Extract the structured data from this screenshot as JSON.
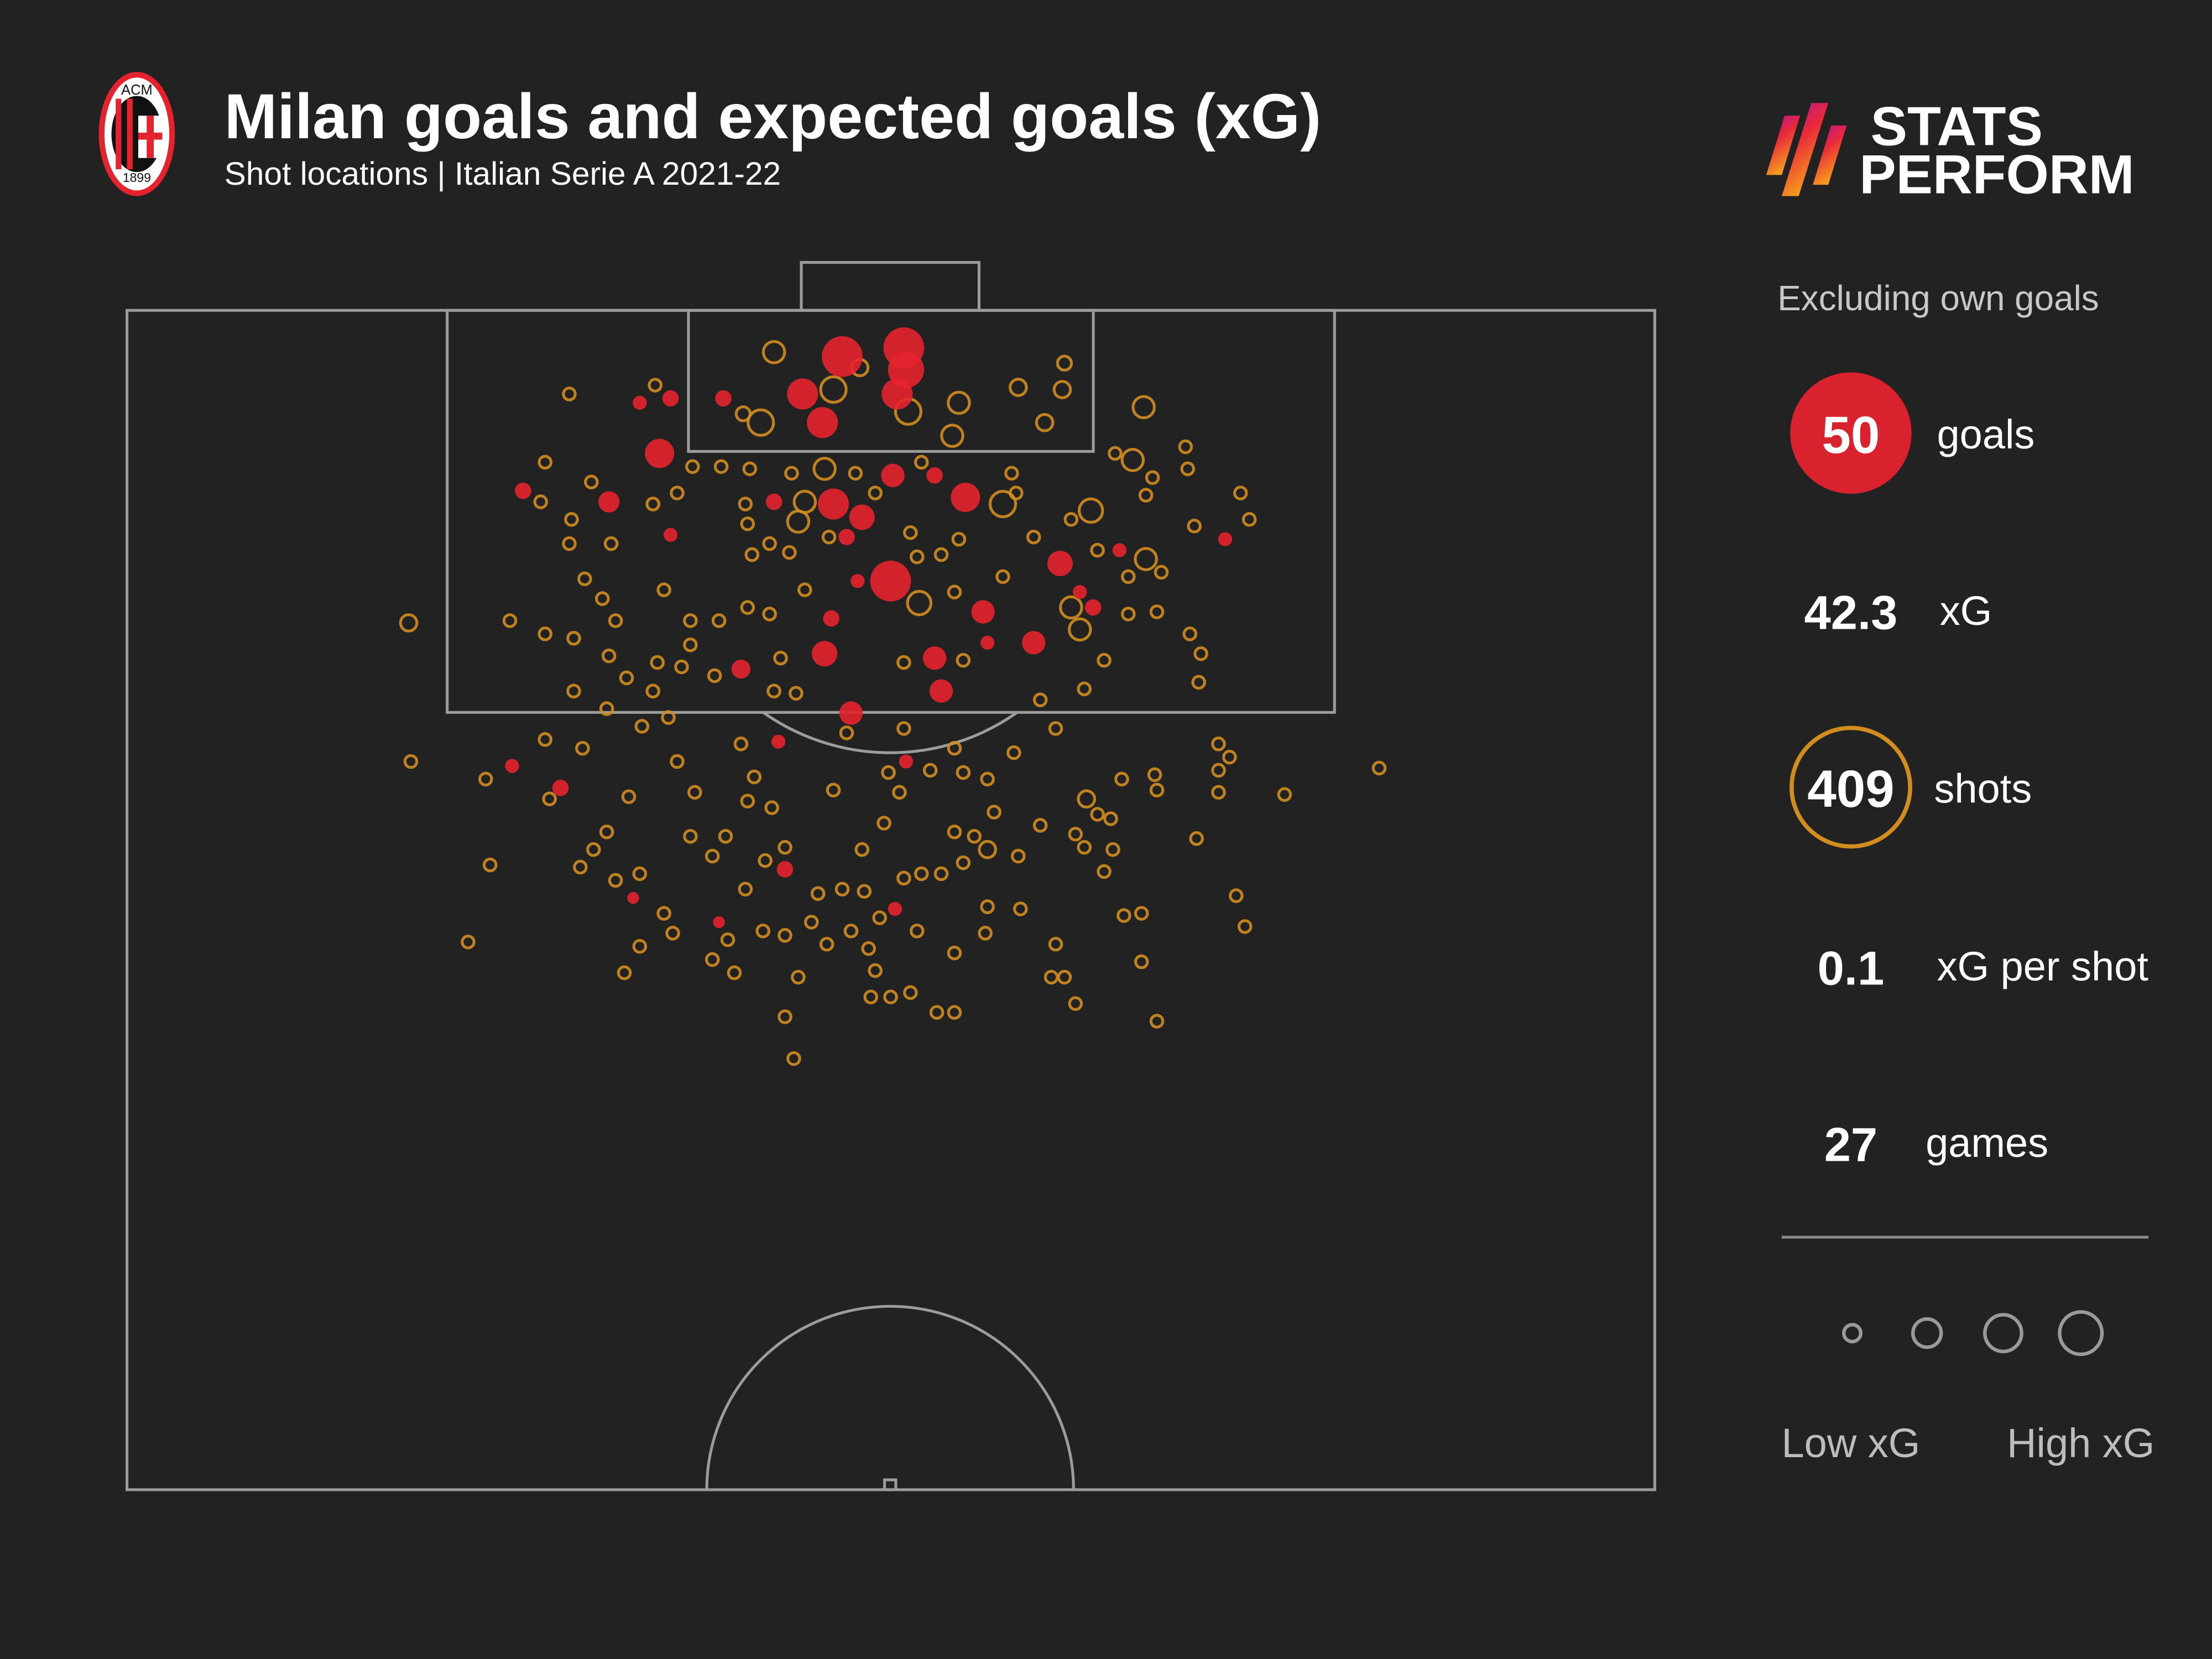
{
  "header": {
    "title": "Milan goals and expected goals (xG)",
    "subtitle": "Shot locations | Italian Serie A 2021-22",
    "club_logo_text": [
      "ACM",
      "1899"
    ],
    "brand_logo": {
      "line1": "STATS",
      "line2": "PERFORM"
    }
  },
  "sidebar": {
    "note": "Excluding own goals",
    "stats": [
      {
        "value": "50",
        "label": "goals"
      },
      {
        "value": "42.3",
        "label": "xG"
      },
      {
        "value": "409",
        "label": "shots"
      },
      {
        "value": "0.1",
        "label": "xG per shot"
      },
      {
        "value": "27",
        "label": "games"
      }
    ],
    "legend": {
      "low": "Low xG",
      "high": "High xG",
      "sizes_xg": [
        0.03,
        0.15,
        0.35,
        0.6
      ]
    }
  },
  "colors": {
    "background": "#222222",
    "goal": "#e5232f",
    "shot": "#d18d1e",
    "pitch_lines": "#9c9c9c"
  },
  "chart_data": {
    "type": "scatter",
    "title": "Milan goals and expected goals (xG)",
    "subtitle": "Shot locations | Italian Serie A 2021-22",
    "units": "metres; x across pitch from left touchline, y distance from goal line",
    "goals": [
      [
        32.5,
        2.1,
        0.75
      ],
      [
        35.3,
        1.7,
        0.75
      ],
      [
        35.4,
        2.7,
        0.6
      ],
      [
        30.7,
        3.8,
        0.45
      ],
      [
        31.6,
        5.1,
        0.45
      ],
      [
        35.0,
        3.8,
        0.45
      ],
      [
        27.1,
        4.0,
        0.1
      ],
      [
        24.7,
        4.0,
        0.1
      ],
      [
        23.3,
        4.2,
        0.06
      ],
      [
        24.2,
        6.5,
        0.4
      ],
      [
        21.9,
        8.7,
        0.2
      ],
      [
        18.0,
        8.2,
        0.1
      ],
      [
        24.7,
        10.2,
        0.06
      ],
      [
        29.4,
        8.7,
        0.1
      ],
      [
        32.1,
        8.8,
        0.45
      ],
      [
        33.4,
        9.4,
        0.3
      ],
      [
        34.8,
        7.5,
        0.25
      ],
      [
        36.7,
        7.5,
        0.1
      ],
      [
        38.1,
        8.5,
        0.4
      ],
      [
        34.7,
        12.3,
        0.75
      ],
      [
        42.4,
        11.5,
        0.3
      ],
      [
        38.9,
        13.7,
        0.25
      ],
      [
        32.0,
        14.0,
        0.1
      ],
      [
        31.7,
        15.6,
        0.3
      ],
      [
        27.9,
        16.3,
        0.15
      ],
      [
        36.7,
        15.8,
        0.25
      ],
      [
        37.0,
        17.3,
        0.25
      ],
      [
        39.1,
        15.1,
        0.06
      ],
      [
        41.2,
        15.1,
        0.25
      ],
      [
        43.9,
        13.5,
        0.1
      ],
      [
        43.3,
        12.8,
        0.06
      ],
      [
        45.1,
        10.9,
        0.06
      ],
      [
        49.9,
        10.4,
        0.06
      ],
      [
        32.9,
        18.3,
        0.25
      ],
      [
        29.6,
        19.6,
        0.06
      ],
      [
        35.4,
        20.5,
        0.06
      ],
      [
        19.7,
        21.7,
        0.1
      ],
      [
        17.5,
        20.7,
        0.06
      ],
      [
        29.9,
        25.4,
        0.1
      ],
      [
        23.0,
        26.7,
        0.03
      ],
      [
        26.9,
        27.8,
        0.03
      ],
      [
        34.9,
        27.2,
        0.06
      ],
      [
        33.2,
        12.3,
        0.06
      ],
      [
        32.7,
        10.3,
        0.1
      ]
    ],
    "shots": [
      [
        29.4,
        1.9,
        0.2
      ],
      [
        32.1,
        3.6,
        0.3
      ],
      [
        28.8,
        5.1,
        0.3
      ],
      [
        35.5,
        4.6,
        0.3
      ],
      [
        37.8,
        4.2,
        0.2
      ],
      [
        37.5,
        5.7,
        0.2
      ],
      [
        40.5,
        3.5,
        0.1
      ],
      [
        42.5,
        3.6,
        0.1
      ],
      [
        42.6,
        2.4,
        0.06
      ],
      [
        41.7,
        5.1,
        0.1
      ],
      [
        28.0,
        4.7,
        0.06
      ],
      [
        33.3,
        2.6,
        0.1
      ],
      [
        20.1,
        3.8
      ],
      [
        24.0,
        3.4
      ],
      [
        19.0,
        6.9
      ],
      [
        21.1,
        7.8
      ],
      [
        18.8,
        8.7
      ],
      [
        20.2,
        9.5
      ],
      [
        20.1,
        10.6
      ],
      [
        22.0,
        10.6
      ],
      [
        20.8,
        12.2
      ],
      [
        21.6,
        13.1
      ],
      [
        22.2,
        14.1
      ],
      [
        17.4,
        14.1
      ],
      [
        19.0,
        14.7
      ],
      [
        20.3,
        14.9
      ],
      [
        21.9,
        15.7
      ],
      [
        22.7,
        16.7
      ],
      [
        20.3,
        17.3
      ],
      [
        21.8,
        18.1
      ],
      [
        12.8,
        14.2,
        0.1
      ],
      [
        12.9,
        20.5
      ],
      [
        23.9,
        8.8
      ],
      [
        25.0,
        8.3
      ],
      [
        25.7,
        7.1
      ],
      [
        27.0,
        7.1
      ],
      [
        24.4,
        12.7
      ],
      [
        25.6,
        14.1
      ],
      [
        26.9,
        14.1
      ],
      [
        28.2,
        13.5
      ],
      [
        29.2,
        13.8
      ],
      [
        25.6,
        15.2
      ],
      [
        24.1,
        16.0
      ],
      [
        25.2,
        16.2
      ],
      [
        26.7,
        16.6
      ],
      [
        23.9,
        17.3
      ],
      [
        23.4,
        18.9
      ],
      [
        24.6,
        18.5
      ],
      [
        28.3,
        7.2
      ],
      [
        30.2,
        7.4
      ],
      [
        31.7,
        7.2,
        0.2
      ],
      [
        33.1,
        7.4
      ],
      [
        36.1,
        6.9
      ],
      [
        28.1,
        8.8
      ],
      [
        30.5,
        9.6,
        0.2
      ],
      [
        31.9,
        10.3
      ],
      [
        28.2,
        9.7
      ],
      [
        29.2,
        10.6
      ],
      [
        28.4,
        11.1
      ],
      [
        30.1,
        11.0
      ],
      [
        30.8,
        12.7
      ],
      [
        35.6,
        10.1
      ],
      [
        37.0,
        11.1
      ],
      [
        36.0,
        13.3,
        0.25
      ],
      [
        37.6,
        12.8
      ],
      [
        37.8,
        10.4
      ],
      [
        39.8,
        8.8,
        0.3
      ],
      [
        40.2,
        7.4
      ],
      [
        39.8,
        12.1
      ],
      [
        41.2,
        10.3
      ],
      [
        43.8,
        9.1,
        0.25
      ],
      [
        42.9,
        9.5
      ],
      [
        44.1,
        10.9
      ],
      [
        46.3,
        11.3,
        0.2
      ],
      [
        45.5,
        12.1
      ],
      [
        47.0,
        11.9
      ],
      [
        42.9,
        13.5,
        0.2
      ],
      [
        43.3,
        14.5,
        0.2
      ],
      [
        45.5,
        13.8
      ],
      [
        46.8,
        13.7
      ],
      [
        44.4,
        15.9
      ],
      [
        43.5,
        17.2
      ],
      [
        41.5,
        17.7
      ],
      [
        38.0,
        15.9
      ],
      [
        35.3,
        16.0
      ],
      [
        29.7,
        15.8
      ],
      [
        30.4,
        17.4
      ],
      [
        29.4,
        17.3
      ],
      [
        34.0,
        8.3
      ],
      [
        35.9,
        11.2
      ],
      [
        30.8,
        8.7,
        0.2
      ],
      [
        40.4,
        8.3
      ],
      [
        46.2,
        4.4,
        0.2
      ],
      [
        48.1,
        6.2
      ],
      [
        48.2,
        7.2
      ],
      [
        44.9,
        6.5
      ],
      [
        45.7,
        6.8,
        0.2
      ],
      [
        46.6,
        7.6
      ],
      [
        46.3,
        8.4
      ],
      [
        50.6,
        8.3
      ],
      [
        51.0,
        9.5
      ],
      [
        48.5,
        9.8
      ],
      [
        48.8,
        15.6
      ],
      [
        48.3,
        14.7
      ],
      [
        48.7,
        16.9
      ],
      [
        49.6,
        19.7
      ],
      [
        50.1,
        20.3
      ],
      [
        49.6,
        20.9
      ],
      [
        49.6,
        21.9
      ],
      [
        52.6,
        22.0
      ],
      [
        56.9,
        20.8
      ],
      [
        46.7,
        21.1
      ],
      [
        45.2,
        21.3
      ],
      [
        46.8,
        21.8
      ],
      [
        48.6,
        24.0
      ],
      [
        50.4,
        26.6
      ],
      [
        50.8,
        28.0
      ],
      [
        19.0,
        19.5
      ],
      [
        20.7,
        19.9
      ],
      [
        16.3,
        21.3
      ],
      [
        19.2,
        22.2
      ],
      [
        16.5,
        25.2
      ],
      [
        15.5,
        28.7
      ],
      [
        21.2,
        24.5
      ],
      [
        20.6,
        25.3
      ],
      [
        21.8,
        23.7
      ],
      [
        22.2,
        25.9
      ],
      [
        22.8,
        22.1
      ],
      [
        23.3,
        25.6
      ],
      [
        24.4,
        27.4
      ],
      [
        23.3,
        28.9
      ],
      [
        22.6,
        30.1
      ],
      [
        24.8,
        28.3
      ],
      [
        25.6,
        23.9
      ],
      [
        26.6,
        24.8
      ],
      [
        27.2,
        23.9
      ],
      [
        25.8,
        21.9
      ],
      [
        25.0,
        20.5
      ],
      [
        27.9,
        19.7
      ],
      [
        28.5,
        21.2
      ],
      [
        29.3,
        22.6
      ],
      [
        28.2,
        22.3
      ],
      [
        26.6,
        29.5
      ],
      [
        27.6,
        30.1
      ],
      [
        27.3,
        28.6
      ],
      [
        28.9,
        28.2
      ],
      [
        29.9,
        28.4
      ],
      [
        29.0,
        25.0
      ],
      [
        28.1,
        26.3
      ],
      [
        29.9,
        24.4
      ],
      [
        31.4,
        26.5
      ],
      [
        31.1,
        27.8
      ],
      [
        31.8,
        28.8
      ],
      [
        30.5,
        30.3
      ],
      [
        29.9,
        32.1
      ],
      [
        30.3,
        34.0
      ],
      [
        32.1,
        21.8
      ],
      [
        32.7,
        19.2
      ],
      [
        34.6,
        21.0
      ],
      [
        35.3,
        19.0
      ],
      [
        36.5,
        20.9
      ],
      [
        37.6,
        19.9
      ],
      [
        35.1,
        21.9
      ],
      [
        38.0,
        21.0
      ],
      [
        39.1,
        21.3
      ],
      [
        40.3,
        20.1
      ],
      [
        42.2,
        19.0
      ],
      [
        34.4,
        23.3
      ],
      [
        33.4,
        24.5
      ],
      [
        32.5,
        26.3
      ],
      [
        33.5,
        26.4
      ],
      [
        34.2,
        27.6
      ],
      [
        33.7,
        29.0
      ],
      [
        32.9,
        28.2
      ],
      [
        34.0,
        30.0
      ],
      [
        33.8,
        31.2
      ],
      [
        34.7,
        31.2
      ],
      [
        35.6,
        31.0
      ],
      [
        36.8,
        31.9
      ],
      [
        37.6,
        31.9
      ],
      [
        37.6,
        29.2
      ],
      [
        39.0,
        28.3
      ],
      [
        39.1,
        27.1
      ],
      [
        40.6,
        27.2
      ],
      [
        37.0,
        25.6
      ],
      [
        38.0,
        25.1
      ],
      [
        37.6,
        23.7
      ],
      [
        38.5,
        23.9
      ],
      [
        39.1,
        24.5,
        0.1
      ],
      [
        39.4,
        22.8
      ],
      [
        40.5,
        24.8
      ],
      [
        41.5,
        23.4
      ],
      [
        43.6,
        22.2,
        0.1
      ],
      [
        44.1,
        22.9
      ],
      [
        44.7,
        23.1
      ],
      [
        43.1,
        23.8
      ],
      [
        43.5,
        24.4
      ],
      [
        44.8,
        24.5
      ],
      [
        44.4,
        25.5
      ],
      [
        45.3,
        27.5
      ],
      [
        46.1,
        27.4
      ],
      [
        42.2,
        28.8
      ],
      [
        42.0,
        30.3
      ],
      [
        42.6,
        30.3
      ],
      [
        43.1,
        31.5
      ],
      [
        46.1,
        29.6
      ],
      [
        46.8,
        32.3
      ],
      [
        36.1,
        25.6
      ],
      [
        35.3,
        25.8
      ],
      [
        35.9,
        28.2
      ]
    ],
    "default_shot_xg": 0.03,
    "legend": "right",
    "grid": false
  }
}
